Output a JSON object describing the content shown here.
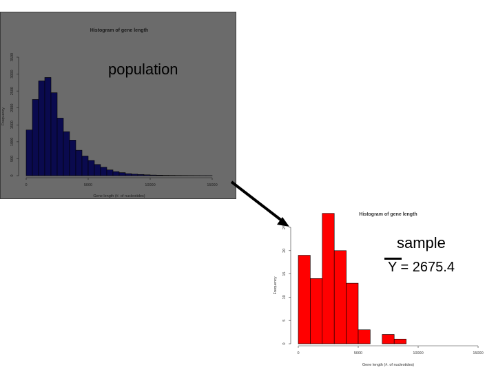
{
  "annotations": {
    "population_label": "population",
    "sample_label": "sample",
    "sample_mean_label": "Y = 2675.4"
  },
  "colors": {
    "population_fill": "#0a0a4e",
    "sample_fill": "#ff0000",
    "panel_bg": "#6b6b6b"
  },
  "chart_data": [
    {
      "type": "bar",
      "title": "Histogram of gene length",
      "xlabel": "Gene length (#. of nucleotides)",
      "ylabel": "Frequency",
      "bin_width": 500,
      "xlim": [
        0,
        15000
      ],
      "ylim": [
        0,
        3500
      ],
      "x_ticks": [
        0,
        5000,
        10000,
        15000
      ],
      "y_ticks": [
        0,
        500,
        1000,
        1500,
        2000,
        2500,
        3000,
        3500
      ],
      "bin_starts": [
        0,
        500,
        1000,
        1500,
        2000,
        2500,
        3000,
        3500,
        4000,
        4500,
        5000,
        5500,
        6000,
        6500,
        7000,
        7500,
        8000,
        8500,
        9000,
        9500,
        10000,
        10500,
        11000,
        11500,
        12000,
        12500,
        13000,
        13500,
        14000,
        14500
      ],
      "values": [
        1350,
        2250,
        2800,
        2900,
        2450,
        1700,
        1300,
        1050,
        750,
        580,
        450,
        330,
        250,
        170,
        120,
        90,
        60,
        45,
        35,
        25,
        18,
        14,
        10,
        8,
        6,
        5,
        4,
        3,
        2,
        2
      ]
    },
    {
      "type": "bar",
      "title": "Histogram of gene length",
      "xlabel": "Gene length (#. of nucleotides)",
      "ylabel": "Frequency",
      "bin_width": 1000,
      "xlim": [
        0,
        15000
      ],
      "ylim": [
        0,
        25
      ],
      "x_ticks": [
        0,
        5000,
        10000,
        15000
      ],
      "y_ticks": [
        0,
        5,
        10,
        15,
        20,
        25
      ],
      "bin_starts": [
        0,
        1000,
        2000,
        3000,
        4000,
        5000,
        6000,
        7000,
        8000
      ],
      "values": [
        19,
        14,
        28,
        20,
        13,
        3,
        0,
        2,
        1
      ]
    }
  ]
}
